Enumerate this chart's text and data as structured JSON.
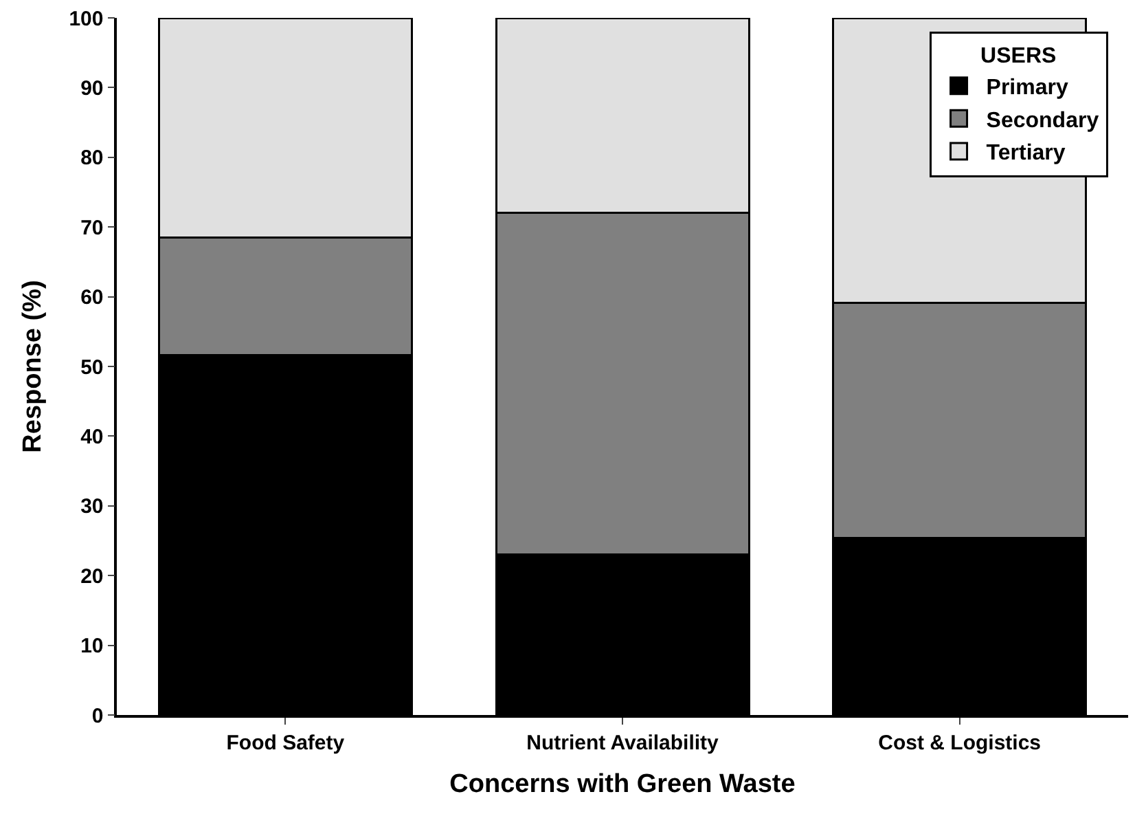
{
  "chart_data": {
    "type": "bar",
    "stacked": true,
    "xlabel": "Concerns with Green Waste",
    "ylabel": "Response (%)",
    "legend_title": "USERS",
    "legend": "top right",
    "categories": [
      "Food Safety",
      "Nutrient Availability",
      "Cost & Logistics"
    ],
    "series": [
      {
        "name": "Primary",
        "color": "#000000",
        "values": [
          51.6,
          23.0,
          25.4
        ]
      },
      {
        "name": "Secondary",
        "color": "#808080",
        "values": [
          16.9,
          49.0,
          33.7
        ]
      },
      {
        "name": "Tertiary",
        "color": "#e0e0e0",
        "values": [
          31.5,
          28.0,
          40.9
        ]
      }
    ],
    "ylim": [
      0,
      100
    ],
    "yticks": [
      0,
      10,
      20,
      30,
      40,
      50,
      60,
      70,
      80,
      90,
      100
    ]
  }
}
